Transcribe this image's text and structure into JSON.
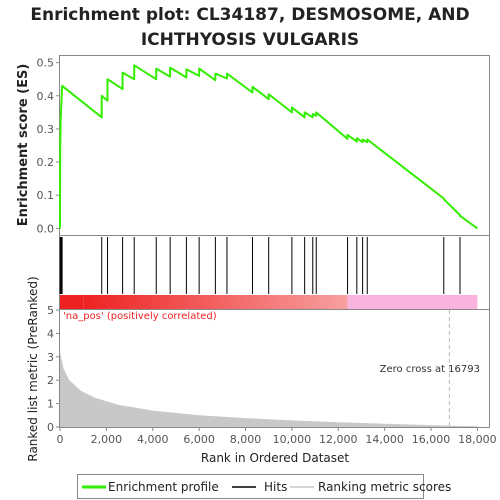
{
  "chart_data": {
    "type": "line",
    "title_lines": [
      "Enrichment plot: CL34187, DESMOSOME, AND",
      "ICHTHYOSIS VULGARIS"
    ],
    "xlabel": "Rank in Ordered Dataset",
    "ylabel_top": "Enrichment score (ES)",
    "ylabel_bottom": "Ranked list metric (PreRanked)",
    "xlim": [
      0,
      18500
    ],
    "ylim_top": [
      -0.02,
      0.52
    ],
    "ylim_bottom": [
      0,
      5
    ],
    "x_ticks": [
      0,
      2000,
      4000,
      6000,
      8000,
      10000,
      12000,
      14000,
      16000,
      18000
    ],
    "x_tick_labels": [
      "0",
      "2,000",
      "4,000",
      "6,000",
      "8,000",
      "10,000",
      "12,000",
      "14,000",
      "16,000",
      "18,000"
    ],
    "y_ticks_top": [
      0.0,
      0.1,
      0.2,
      0.3,
      0.4,
      0.5
    ],
    "y_tick_labels_top": [
      "0.0",
      "0.1",
      "0.2",
      "0.3",
      "0.4",
      "0.5"
    ],
    "y_ticks_bottom": [
      0,
      1,
      2,
      3,
      4,
      5
    ],
    "y_tick_labels_bottom": [
      "0",
      "1",
      "2",
      "3",
      "4",
      "5"
    ],
    "max_rank": 18000,
    "hits": [
      10,
      30,
      60,
      90,
      1800,
      2050,
      2700,
      3200,
      4150,
      4750,
      5450,
      6000,
      6700,
      7200,
      8300,
      9000,
      10000,
      10550,
      10900,
      11050,
      12400,
      12800,
      13050,
      13250,
      16550,
      17250
    ],
    "es_profile": [
      [
        0,
        0.0
      ],
      [
        10,
        0.24
      ],
      [
        30,
        0.33
      ],
      [
        60,
        0.38
      ],
      [
        90,
        0.43
      ],
      [
        1799,
        0.335
      ],
      [
        1800,
        0.4
      ],
      [
        2049,
        0.385
      ],
      [
        2050,
        0.45
      ],
      [
        2699,
        0.42
      ],
      [
        2700,
        0.47
      ],
      [
        3199,
        0.45
      ],
      [
        3200,
        0.492
      ],
      [
        4149,
        0.45
      ],
      [
        4150,
        0.482
      ],
      [
        4749,
        0.458
      ],
      [
        4750,
        0.485
      ],
      [
        5449,
        0.455
      ],
      [
        5450,
        0.48
      ],
      [
        5999,
        0.46
      ],
      [
        6000,
        0.482
      ],
      [
        6699,
        0.447
      ],
      [
        6700,
        0.467
      ],
      [
        7199,
        0.452
      ],
      [
        7200,
        0.467
      ],
      [
        8299,
        0.41
      ],
      [
        8300,
        0.427
      ],
      [
        8999,
        0.39
      ],
      [
        9000,
        0.405
      ],
      [
        9999,
        0.35
      ],
      [
        10000,
        0.365
      ],
      [
        10549,
        0.335
      ],
      [
        10550,
        0.35
      ],
      [
        10899,
        0.335
      ],
      [
        10900,
        0.345
      ],
      [
        11049,
        0.34
      ],
      [
        11050,
        0.35
      ],
      [
        12399,
        0.27
      ],
      [
        12400,
        0.282
      ],
      [
        12799,
        0.262
      ],
      [
        12800,
        0.272
      ],
      [
        13049,
        0.26
      ],
      [
        13050,
        0.268
      ],
      [
        13249,
        0.26
      ],
      [
        13250,
        0.268
      ],
      [
        16549,
        0.09
      ],
      [
        16550,
        0.088
      ],
      [
        17249,
        0.04
      ],
      [
        17250,
        0.038
      ],
      [
        18000,
        0.0
      ]
    ],
    "zero_cross_rank": 16793,
    "zero_cross_label": "Zero cross at 16793",
    "positive_label": "'na_pos' (positively correlated)",
    "metric_curve": {
      "start": 3.2,
      "end": 0.03,
      "breakpoints": [
        [
          0,
          3.2
        ],
        [
          150,
          2.5
        ],
        [
          400,
          2.0
        ],
        [
          900,
          1.55
        ],
        [
          1500,
          1.25
        ],
        [
          2500,
          0.95
        ],
        [
          4000,
          0.7
        ],
        [
          6000,
          0.5
        ],
        [
          8000,
          0.38
        ],
        [
          10000,
          0.28
        ],
        [
          12000,
          0.2
        ],
        [
          14000,
          0.14
        ],
        [
          16000,
          0.08
        ],
        [
          16793,
          0.05
        ],
        [
          18000,
          0.03
        ]
      ]
    },
    "colors": {
      "es_line": "#33ee00",
      "hits": "#000000",
      "metric_fill": "#c8c8c8",
      "pos_strong": "#ee2222",
      "pos_light": "#f8a0a0",
      "neg_pink": "#f8b4dc",
      "zero_line": "#bbbbbb"
    },
    "legend": [
      {
        "label": "Enrichment profile",
        "kind": "line",
        "color": "#33ee00"
      },
      {
        "label": "Hits",
        "kind": "line",
        "color": "#000000"
      },
      {
        "label": "Ranking metric scores",
        "kind": "line",
        "color": "#c8c8c8"
      }
    ]
  }
}
